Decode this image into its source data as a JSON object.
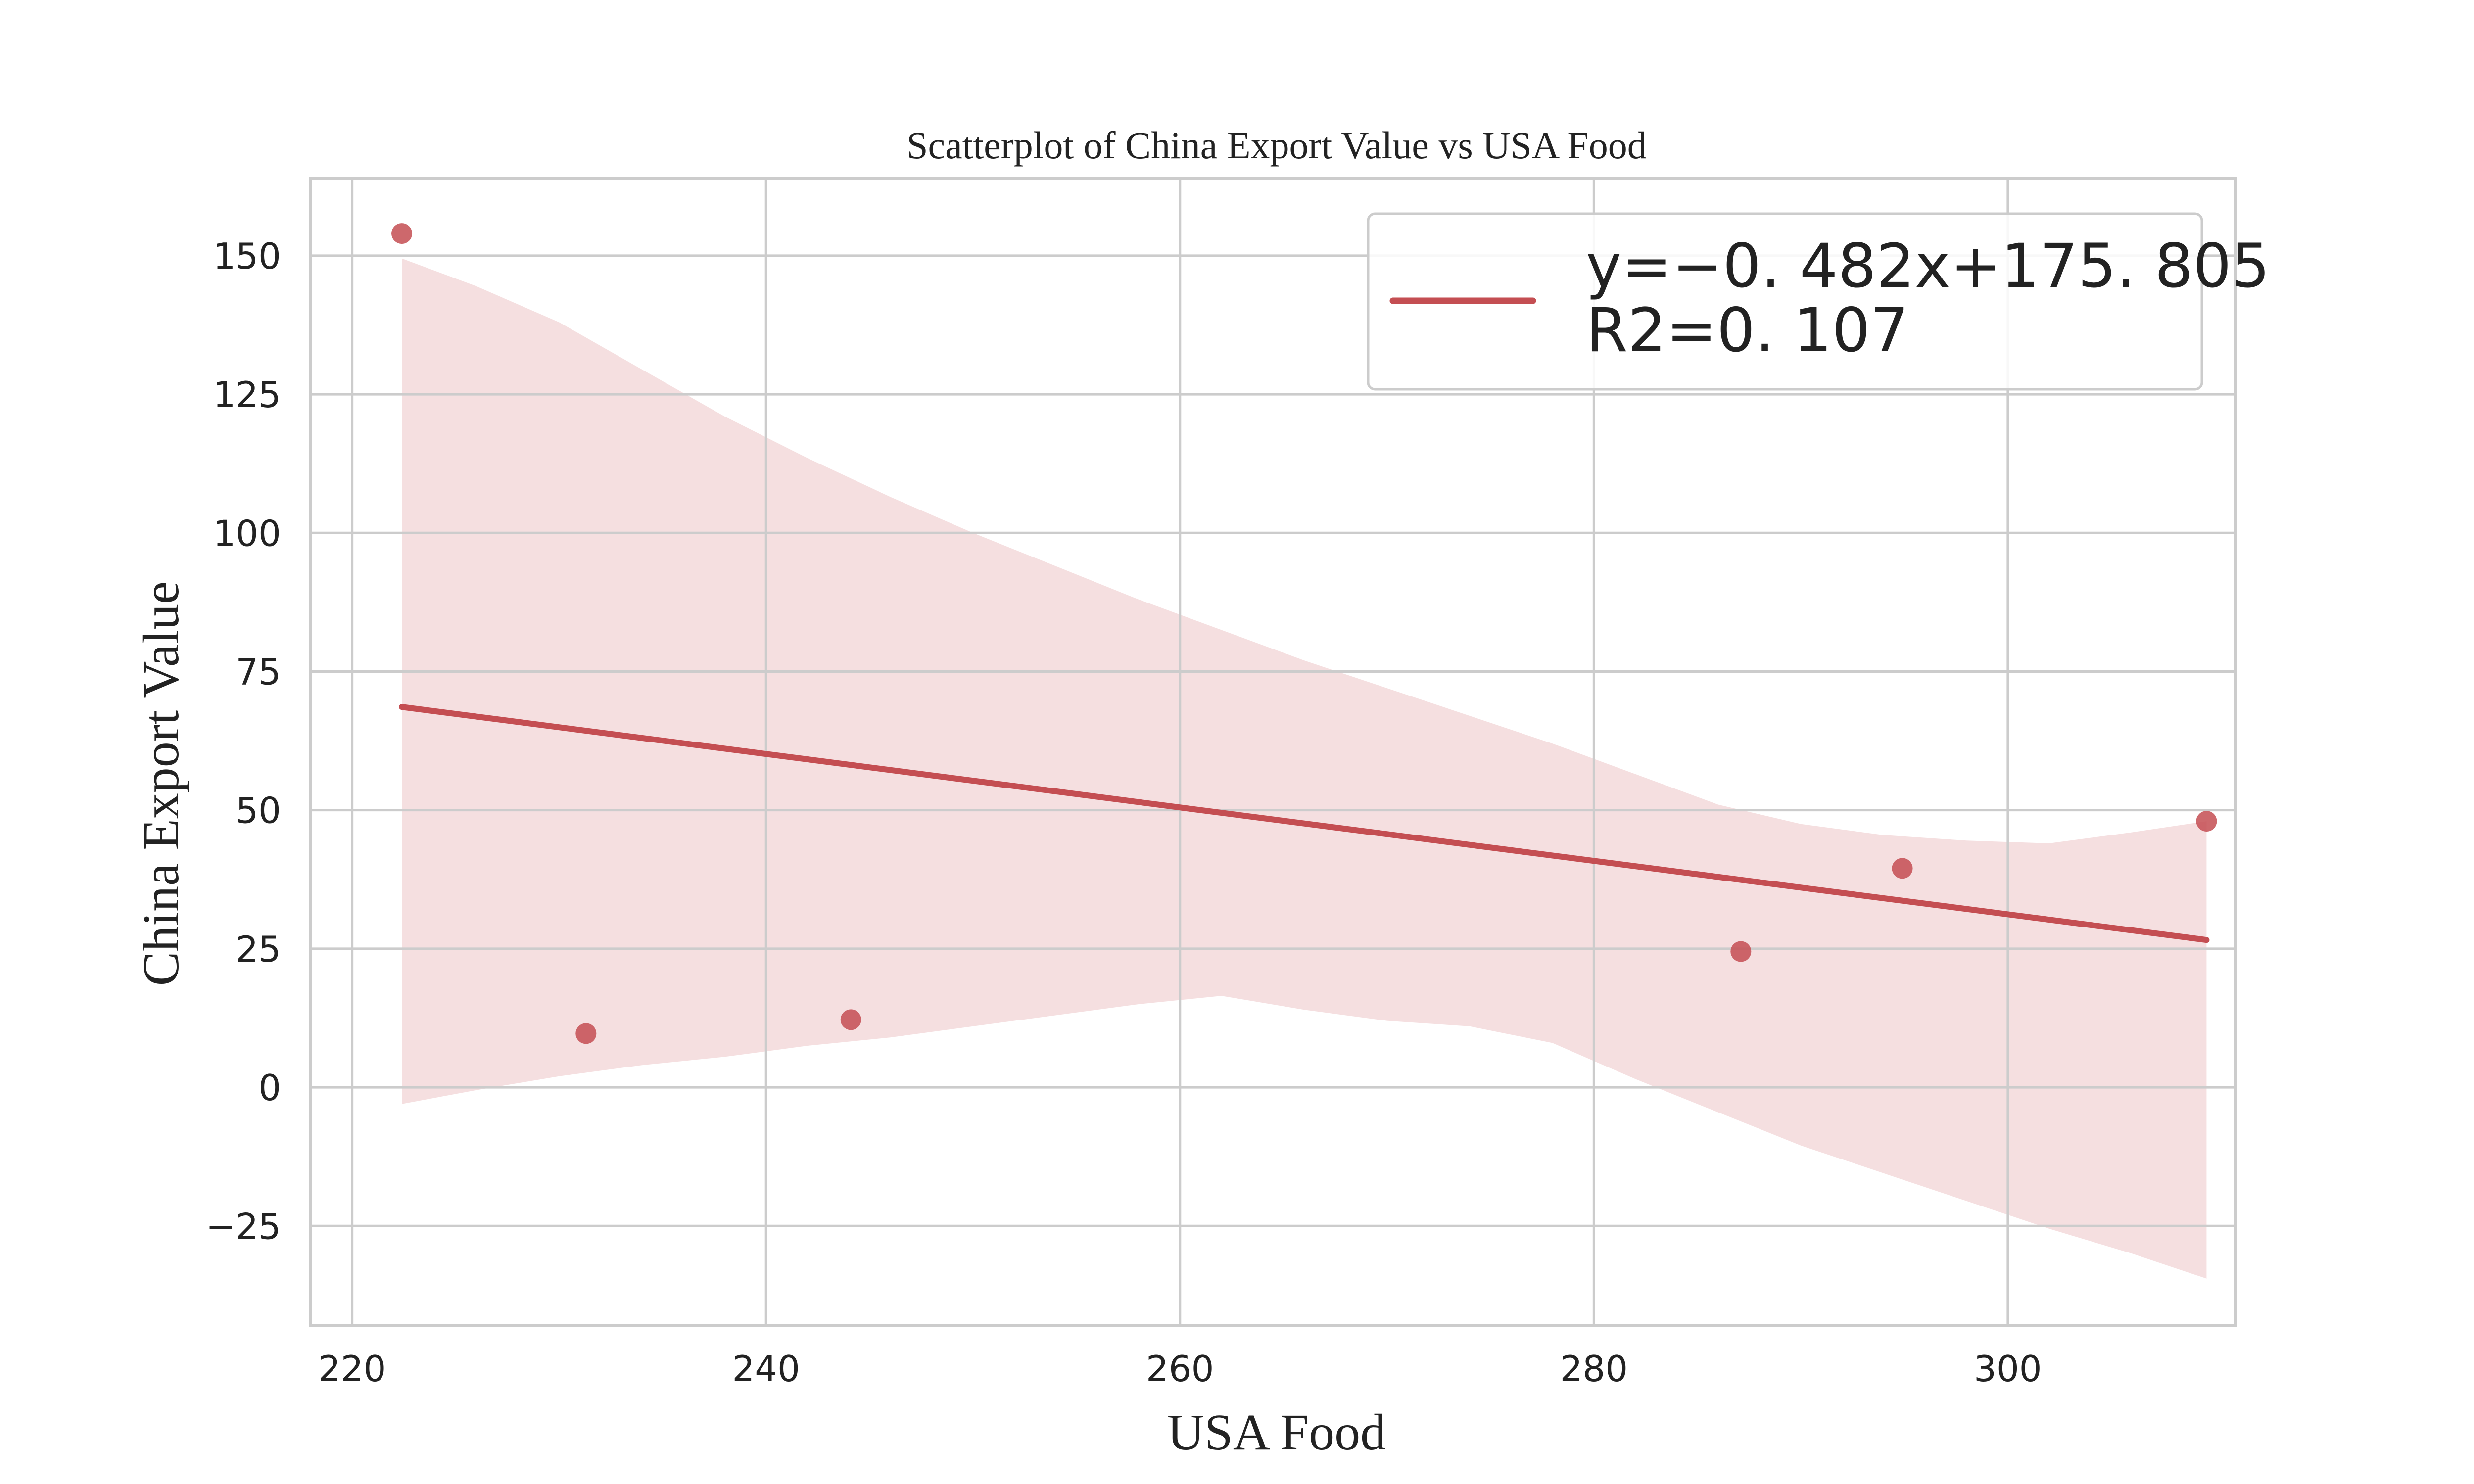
{
  "chart_data": {
    "type": "scatter",
    "title": "Scatterplot of China Export Value vs USA Food",
    "xlabel": "USA Food",
    "ylabel": "China Export Value",
    "xlim": [
      218,
      311
    ],
    "ylim": [
      -43,
      164
    ],
    "x_ticks": [
      220,
      240,
      260,
      280,
      300
    ],
    "y_ticks": [
      -25,
      0,
      25,
      50,
      75,
      100,
      125,
      150
    ],
    "x_tick_labels": [
      "220",
      "240",
      "260",
      "280",
      "300"
    ],
    "y_tick_labels": [
      "−25",
      "0",
      "25",
      "50",
      "75",
      "100",
      "125",
      "150"
    ],
    "grid": true,
    "legend_position": "top-right",
    "points": {
      "x": [
        222.4,
        231.3,
        244.1,
        287.1,
        294.9,
        309.6
      ],
      "y": [
        154.0,
        9.7,
        12.2,
        24.5,
        39.5,
        48.0
      ]
    },
    "regression": {
      "slope": -0.482,
      "intercept": 175.805,
      "x_range": [
        222.4,
        309.6
      ],
      "legend_line1": "y=−0. 482x+175. 805",
      "legend_line2": "R2=0. 107"
    },
    "confidence_band": {
      "x": [
        222.4,
        226,
        230,
        234,
        238,
        242,
        246,
        250,
        254,
        258,
        262,
        266,
        270,
        274,
        278,
        282,
        286,
        290,
        294,
        298,
        302,
        306,
        309.6
      ],
      "upper": [
        149.5,
        144.5,
        138.0,
        129.5,
        121.0,
        113.5,
        106.5,
        100.0,
        94.0,
        88.0,
        82.5,
        77.0,
        72.0,
        67.0,
        62.0,
        56.5,
        51.0,
        47.5,
        45.5,
        44.5,
        44.0,
        46.0,
        48.0
      ],
      "lower": [
        -3.0,
        -0.5,
        2.0,
        4.0,
        5.5,
        7.5,
        9.0,
        11.0,
        13.0,
        15.0,
        16.5,
        14.0,
        12.0,
        11.0,
        8.0,
        1.5,
        -4.5,
        -10.5,
        -15.5,
        -20.5,
        -25.5,
        -30.0,
        -34.5
      ]
    },
    "colors": {
      "series": "#c44e52",
      "band": "#f5dfe0",
      "grid": "#cccccc",
      "axes_frame": "#cccccc",
      "text": "#222222",
      "background": "#ffffff"
    }
  }
}
